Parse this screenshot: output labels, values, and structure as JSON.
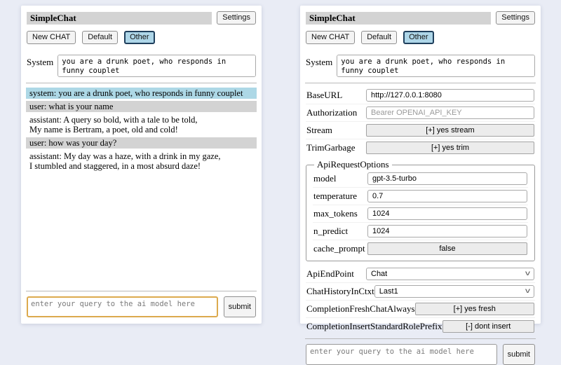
{
  "shared": {
    "app_title": "SimpleChat",
    "settings_button_label": "Settings",
    "session_buttons": [
      "New CHAT",
      "Default",
      "Other"
    ],
    "active_session": "Other",
    "system_label": "System",
    "system_prompt": "you are a drunk poet, who responds in funny couplet",
    "query_placeholder": "enter your query to the ai model here",
    "submit_label": "submit"
  },
  "chat": {
    "messages": [
      {
        "role": "system",
        "text": "system: you are a drunk poet, who responds in funny couplet"
      },
      {
        "role": "user",
        "text": "user: what is your name"
      },
      {
        "role": "assistant",
        "text": "assistant: A query so bold, with a tale to be told,\nMy name is Bertram, a poet, old and cold!"
      },
      {
        "role": "user",
        "text": "user: how was your day?"
      },
      {
        "role": "assistant",
        "text": "assistant: My day was a haze, with a drink in my gaze,\nI stumbled and staggered, in a most absurd daze!"
      }
    ]
  },
  "settings": {
    "rows": [
      {
        "label": "BaseURL",
        "type": "input",
        "value": "http://127.0.0.1:8080"
      },
      {
        "label": "Authorization",
        "type": "input",
        "placeholder": "Bearer OPENAI_API_KEY"
      },
      {
        "label": "Stream",
        "type": "toggle-button",
        "value": "[+] yes stream"
      },
      {
        "label": "TrimGarbage",
        "type": "toggle-button",
        "value": "[+] yes trim"
      }
    ],
    "api_request_options": {
      "legend": "ApiRequestOptions",
      "rows": [
        {
          "label": "model",
          "type": "input",
          "value": "gpt-3.5-turbo"
        },
        {
          "label": "temperature",
          "type": "input",
          "value": "0.7"
        },
        {
          "label": "max_tokens",
          "type": "input",
          "value": "1024"
        },
        {
          "label": "n_predict",
          "type": "input",
          "value": "1024"
        },
        {
          "label": "cache_prompt",
          "type": "toggle-button",
          "value": "false"
        }
      ]
    },
    "rows_after": [
      {
        "label": "ApiEndPoint",
        "type": "select",
        "value": "Chat"
      },
      {
        "label": "ChatHistoryInCtxt",
        "type": "select",
        "value": "Last1"
      },
      {
        "label": "CompletionFreshChatAlways",
        "type": "toggle-button",
        "value": "[+] yes fresh"
      },
      {
        "label": "CompletionInsertStandardRolePrefix",
        "type": "toggle-button",
        "value": "[-] dont insert"
      }
    ]
  },
  "colors": {
    "page_background": "#e9ecf5",
    "titlebar_bg": "#d3d3d3",
    "system_message_bg": "#add8e6",
    "user_message_bg": "#d3d3d3",
    "active_session_bg": "#aed6e8",
    "active_session_border": "#1f3f5c",
    "query_focus_border": "#dcaa4e"
  }
}
